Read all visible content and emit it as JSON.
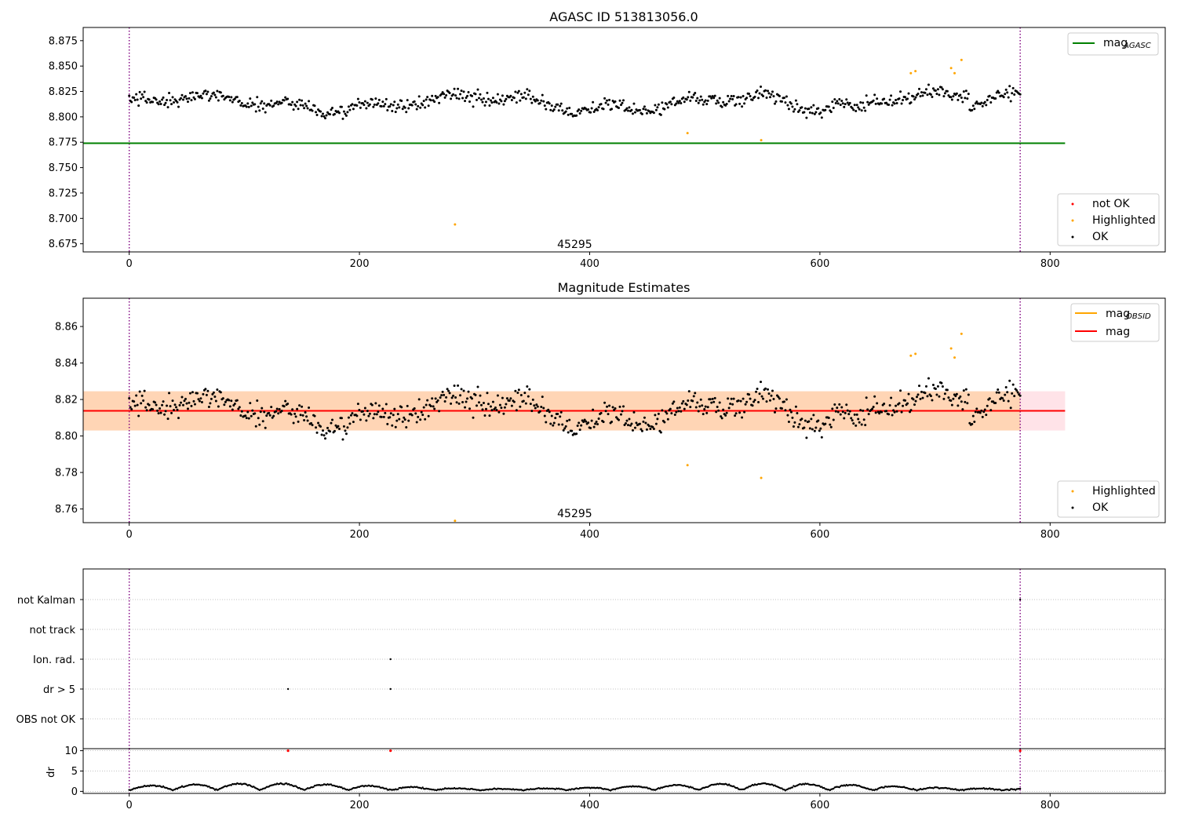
{
  "chart_data": [
    {
      "type": "scatter",
      "title": "AGASC ID 513813056.0",
      "xlim": [
        -40,
        900
      ],
      "ylim": [
        8.667,
        8.888
      ],
      "x_ticks": [
        0,
        200,
        400,
        600,
        800
      ],
      "y_ticks": [
        8.675,
        8.7,
        8.725,
        8.75,
        8.775,
        8.8,
        8.825,
        8.85,
        8.875
      ],
      "y_tick_labels": [
        "8.675",
        "8.700",
        "8.725",
        "8.750",
        "8.775",
        "8.800",
        "8.825",
        "8.850",
        "8.875"
      ],
      "vlines": [
        0,
        774
      ],
      "hline": {
        "name": "mag_AGASC",
        "y": 8.774,
        "x_range": [
          -40,
          813
        ],
        "color": "#008000"
      },
      "annotation": {
        "text": "45295",
        "x": 387,
        "y": 8.671
      },
      "legend_lines": [
        {
          "main": "mag",
          "sub": "AGASC",
          "color": "#008000"
        }
      ],
      "legend_markers": [
        {
          "label": "not OK",
          "color": "#ff0000"
        },
        {
          "label": "Highlighted",
          "color": "#ffa500"
        },
        {
          "label": "OK",
          "color": "#000000"
        }
      ],
      "series": [
        {
          "name": "OK",
          "color": "#000000",
          "mode": "noisy",
          "x_range": [
            0,
            774
          ],
          "n": 760,
          "base": 8.8135,
          "noise": 0.012
        },
        {
          "name": "Highlighted",
          "color": "#ffa500",
          "points": [
            [
              283,
              8.694
            ],
            [
              485,
              8.784
            ],
            [
              549,
              8.777
            ],
            [
              679,
              8.843
            ],
            [
              683,
              8.845
            ],
            [
              714,
              8.848
            ],
            [
              717,
              8.843
            ],
            [
              723,
              8.856
            ]
          ]
        }
      ]
    },
    {
      "type": "scatter",
      "title": "Magnitude Estimates",
      "xlim": [
        -40,
        900
      ],
      "ylim": [
        8.7525,
        8.8755
      ],
      "x_ticks": [
        0,
        200,
        400,
        600,
        800
      ],
      "y_ticks": [
        8.76,
        8.78,
        8.8,
        8.82,
        8.84,
        8.86
      ],
      "y_tick_labels": [
        "8.76",
        "8.78",
        "8.80",
        "8.82",
        "8.84",
        "8.86"
      ],
      "vlines": [
        0,
        774
      ],
      "band": {
        "y_range": [
          8.803,
          8.8245
        ],
        "x_range": [
          -40,
          813
        ]
      },
      "band_inner": {
        "y_range": [
          8.803,
          8.8245
        ],
        "x_range": [
          -40,
          774
        ]
      },
      "hline": {
        "name": "mag",
        "y": 8.8138,
        "x_range": [
          -40,
          813
        ],
        "color": "#ff0000"
      },
      "annotation": {
        "text": "45295",
        "x": 387,
        "y": 8.7555
      },
      "legend_lines": [
        {
          "main": "mag",
          "sub": "OBSID",
          "color": "#ffa500"
        },
        {
          "main": "mag",
          "sub": "",
          "color": "#ff0000"
        }
      ],
      "legend_markers": [
        {
          "label": "Highlighted",
          "color": "#ffa500"
        },
        {
          "label": "OK",
          "color": "#000000"
        }
      ],
      "series": [
        {
          "name": "OK",
          "color": "#000000",
          "mode": "noisy",
          "x_range": [
            0,
            774
          ],
          "n": 760,
          "base": 8.8135,
          "noise": 0.012
        },
        {
          "name": "Highlighted",
          "color": "#ffa500",
          "points": [
            [
              283,
              8.7535
            ],
            [
              485,
              8.784
            ],
            [
              549,
              8.777
            ],
            [
              679,
              8.844
            ],
            [
              683,
              8.845
            ],
            [
              714,
              8.848
            ],
            [
              717,
              8.843
            ],
            [
              723,
              8.856
            ]
          ]
        }
      ]
    },
    {
      "type": "scatter",
      "title": "",
      "xlim": [
        -40,
        900
      ],
      "categories": [
        "not Kalman",
        "not track",
        "Ion. rad.",
        "dr > 5",
        "OBS not OK"
      ],
      "vlines": [
        0,
        774
      ],
      "series": [
        {
          "name": "not Kalman",
          "color": "#000000",
          "points": [
            [
              774,
              0
            ]
          ]
        },
        {
          "name": "Ion. rad.",
          "color": "#000000",
          "points": [
            [
              227,
              2
            ]
          ]
        },
        {
          "name": "dr > 5",
          "color": "#000000",
          "points": [
            [
              138,
              3
            ],
            [
              227,
              3
            ]
          ]
        }
      ]
    },
    {
      "type": "scatter",
      "title": "",
      "ylabel": "dr",
      "xlim": [
        -40,
        900
      ],
      "ylim": [
        -0.5,
        10.5
      ],
      "x_ticks": [
        0,
        200,
        400,
        600,
        800
      ],
      "y_ticks": [
        0,
        5,
        10
      ],
      "y_tick_labels": [
        "0",
        "5",
        "10"
      ],
      "vlines": [
        0,
        774
      ],
      "series": [
        {
          "name": "dr",
          "color": "#000000",
          "mode": "segments",
          "x_range": [
            0,
            774
          ],
          "n": 760
        },
        {
          "name": "dr clipped",
          "color": "#ff0000",
          "points": [
            [
              138,
              10
            ],
            [
              227,
              10
            ],
            [
              774,
              10
            ]
          ]
        }
      ]
    }
  ]
}
